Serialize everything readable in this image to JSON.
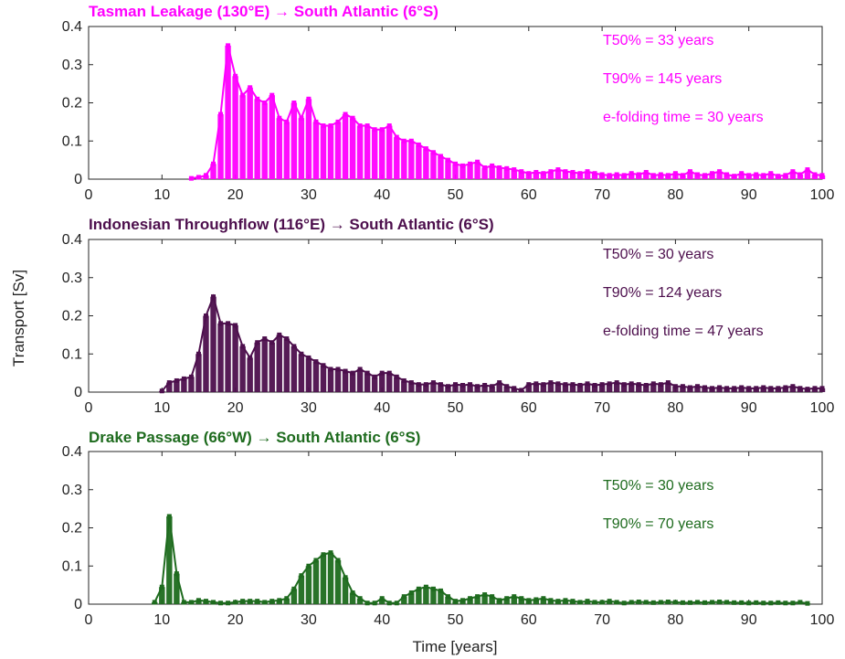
{
  "figure": {
    "xlabel": "Time [years]",
    "ylabel": "Transport [Sv]"
  },
  "chart_data": [
    {
      "type": "bar",
      "title": "Tasman Leakage (130°E) → South Atlantic (6°S)",
      "color": "#ff00ff",
      "xlim": [
        0,
        100
      ],
      "ylim": [
        0,
        0.4
      ],
      "xticks": [
        "0",
        "10",
        "20",
        "30",
        "40",
        "50",
        "60",
        "70",
        "80",
        "90",
        "100"
      ],
      "yticks": [
        "0",
        "0.1",
        "0.2",
        "0.3",
        "0.4"
      ],
      "annotations": [
        "T50% = 33 years",
        "T90% = 145 years",
        "e-folding time = 30 years"
      ],
      "x": [
        14,
        15,
        16,
        17,
        18,
        19,
        20,
        21,
        22,
        23,
        24,
        25,
        26,
        27,
        28,
        29,
        30,
        31,
        32,
        33,
        34,
        35,
        36,
        37,
        38,
        39,
        40,
        41,
        42,
        43,
        44,
        45,
        46,
        47,
        48,
        49,
        50,
        51,
        52,
        53,
        54,
        55,
        56,
        57,
        58,
        59,
        60,
        61,
        62,
        63,
        64,
        65,
        66,
        67,
        68,
        69,
        70,
        71,
        72,
        73,
        74,
        75,
        76,
        77,
        78,
        79,
        80,
        81,
        82,
        83,
        84,
        85,
        86,
        87,
        88,
        89,
        90,
        91,
        92,
        93,
        94,
        95,
        96,
        97,
        98,
        99,
        100
      ],
      "values": [
        0.002,
        0.005,
        0.01,
        0.04,
        0.17,
        0.35,
        0.27,
        0.22,
        0.24,
        0.21,
        0.2,
        0.22,
        0.16,
        0.15,
        0.2,
        0.16,
        0.21,
        0.15,
        0.14,
        0.14,
        0.15,
        0.17,
        0.16,
        0.14,
        0.14,
        0.13,
        0.13,
        0.14,
        0.11,
        0.1,
        0.1,
        0.09,
        0.08,
        0.07,
        0.06,
        0.05,
        0.04,
        0.035,
        0.04,
        0.045,
        0.03,
        0.035,
        0.03,
        0.028,
        0.025,
        0.02,
        0.015,
        0.018,
        0.015,
        0.02,
        0.025,
        0.02,
        0.018,
        0.015,
        0.02,
        0.015,
        0.012,
        0.01,
        0.012,
        0.01,
        0.015,
        0.012,
        0.018,
        0.01,
        0.012,
        0.01,
        0.015,
        0.01,
        0.02,
        0.012,
        0.01,
        0.015,
        0.02,
        0.012,
        0.008,
        0.015,
        0.01,
        0.012,
        0.01,
        0.015,
        0.008,
        0.01,
        0.02,
        0.012,
        0.025,
        0.012,
        0.01
      ]
    },
    {
      "type": "bar",
      "title": "Indonesian Throughflow (116°E) → South Atlantic (6°S)",
      "color": "#4d0f4d",
      "xlim": [
        0,
        100
      ],
      "ylim": [
        0,
        0.4
      ],
      "xticks": [
        "0",
        "10",
        "20",
        "30",
        "40",
        "50",
        "60",
        "70",
        "80",
        "90",
        "100"
      ],
      "yticks": [
        "0",
        "0.1",
        "0.2",
        "0.3",
        "0.4"
      ],
      "annotations": [
        "T50% = 30 years",
        "T90% = 124 years",
        "e-folding time = 47 years"
      ],
      "x": [
        10,
        11,
        12,
        13,
        14,
        15,
        16,
        17,
        18,
        19,
        20,
        21,
        22,
        23,
        24,
        25,
        26,
        27,
        28,
        29,
        30,
        31,
        32,
        33,
        34,
        35,
        36,
        37,
        38,
        39,
        40,
        41,
        42,
        43,
        44,
        45,
        46,
        47,
        48,
        49,
        50,
        51,
        52,
        53,
        54,
        55,
        56,
        57,
        58,
        59,
        60,
        61,
        62,
        63,
        64,
        65,
        66,
        67,
        68,
        69,
        70,
        71,
        72,
        73,
        74,
        75,
        76,
        77,
        78,
        79,
        80,
        81,
        82,
        83,
        84,
        85,
        86,
        87,
        88,
        89,
        90,
        91,
        92,
        93,
        94,
        95,
        96,
        97,
        98,
        99,
        100
      ],
      "values": [
        0.003,
        0.025,
        0.03,
        0.035,
        0.04,
        0.1,
        0.2,
        0.25,
        0.18,
        0.18,
        0.175,
        0.12,
        0.09,
        0.13,
        0.14,
        0.13,
        0.15,
        0.14,
        0.12,
        0.1,
        0.09,
        0.08,
        0.07,
        0.06,
        0.06,
        0.055,
        0.05,
        0.06,
        0.05,
        0.04,
        0.05,
        0.05,
        0.04,
        0.03,
        0.025,
        0.02,
        0.02,
        0.025,
        0.02,
        0.015,
        0.02,
        0.018,
        0.02,
        0.015,
        0.018,
        0.015,
        0.025,
        0.015,
        0.01,
        0.005,
        0.02,
        0.022,
        0.02,
        0.025,
        0.022,
        0.02,
        0.02,
        0.018,
        0.022,
        0.018,
        0.02,
        0.022,
        0.025,
        0.02,
        0.022,
        0.02,
        0.018,
        0.022,
        0.02,
        0.025,
        0.015,
        0.015,
        0.012,
        0.015,
        0.012,
        0.01,
        0.012,
        0.01,
        0.01,
        0.012,
        0.01,
        0.01,
        0.012,
        0.01,
        0.01,
        0.012,
        0.015,
        0.01,
        0.008,
        0.01,
        0.01
      ]
    },
    {
      "type": "bar",
      "title": "Drake Passage (66°W) → South Atlantic (6°S)",
      "color": "#1e6b1e",
      "xlim": [
        0,
        100
      ],
      "ylim": [
        0,
        0.4
      ],
      "xticks": [
        "0",
        "10",
        "20",
        "30",
        "40",
        "50",
        "60",
        "70",
        "80",
        "90",
        "100"
      ],
      "yticks": [
        "0",
        "0.1",
        "0.2",
        "0.3",
        "0.4"
      ],
      "annotations": [
        "T50% = 30 years",
        "T90% = 70 years"
      ],
      "x": [
        9,
        10,
        11,
        12,
        13,
        14,
        15,
        16,
        17,
        18,
        19,
        20,
        21,
        22,
        23,
        24,
        25,
        26,
        27,
        28,
        29,
        30,
        31,
        32,
        33,
        34,
        35,
        36,
        37,
        38,
        39,
        40,
        41,
        42,
        43,
        44,
        45,
        46,
        47,
        48,
        49,
        50,
        51,
        52,
        53,
        54,
        55,
        56,
        57,
        58,
        59,
        60,
        61,
        62,
        63,
        64,
        65,
        66,
        67,
        68,
        69,
        70,
        71,
        72,
        73,
        74,
        75,
        76,
        77,
        78,
        79,
        80,
        81,
        82,
        83,
        84,
        85,
        86,
        87,
        88,
        89,
        90,
        91,
        92,
        93,
        94,
        95,
        96,
        97,
        98
      ],
      "values": [
        0.005,
        0.045,
        0.23,
        0.08,
        0.005,
        0.005,
        0.01,
        0.008,
        0.005,
        0.003,
        0.003,
        0.005,
        0.008,
        0.008,
        0.008,
        0.005,
        0.008,
        0.01,
        0.015,
        0.04,
        0.075,
        0.1,
        0.115,
        0.13,
        0.135,
        0.115,
        0.07,
        0.03,
        0.015,
        0.003,
        0.003,
        0.015,
        0.003,
        0.003,
        0.02,
        0.03,
        0.04,
        0.045,
        0.04,
        0.035,
        0.02,
        0.008,
        0.01,
        0.015,
        0.02,
        0.025,
        0.02,
        0.01,
        0.015,
        0.02,
        0.015,
        0.01,
        0.012,
        0.015,
        0.01,
        0.008,
        0.01,
        0.008,
        0.005,
        0.008,
        0.005,
        0.005,
        0.008,
        0.005,
        0.003,
        0.005,
        0.006,
        0.005,
        0.004,
        0.005,
        0.006,
        0.005,
        0.004,
        0.004,
        0.005,
        0.004,
        0.005,
        0.006,
        0.005,
        0.004,
        0.004,
        0.003,
        0.004,
        0.003,
        0.003,
        0.004,
        0.003,
        0.003,
        0.005,
        0.002
      ]
    }
  ]
}
